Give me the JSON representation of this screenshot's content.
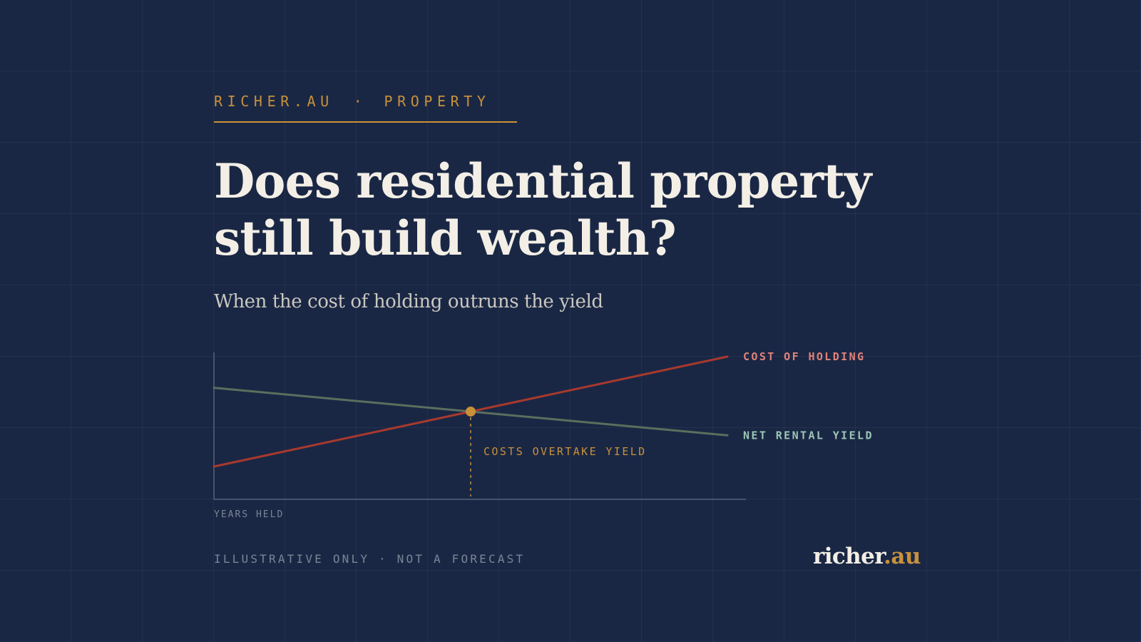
{
  "kicker": {
    "site": "RICHER.AU",
    "separator": "·",
    "section": "PROPERTY"
  },
  "headline": {
    "line1": "Does residential property",
    "line2": "still build wealth?"
  },
  "subtitle": "When the cost of holding outruns the yield",
  "chart_data": {
    "type": "line",
    "title": "",
    "xlabel": "YEARS HELD",
    "ylabel": "",
    "x_range": [
      0,
      1
    ],
    "y_range": [
      0,
      1
    ],
    "grid": false,
    "legend_placement": "right (labels at line ends)",
    "series": [
      {
        "name": "COST OF HOLDING",
        "color": "#a8392e",
        "label_color": "#e0837a",
        "x": [
          0,
          1
        ],
        "y": [
          0.2,
          0.87
        ]
      },
      {
        "name": "NET RENTAL YIELD",
        "color": "#5b6f5e",
        "label_color": "#9cc6b5",
        "x": [
          0,
          1
        ],
        "y": [
          0.68,
          0.39
        ]
      }
    ],
    "annotations": [
      {
        "text": "COSTS OVERTAKE YIELD",
        "x": 0.5,
        "y": 0.535,
        "color": "#c8913a"
      }
    ]
  },
  "footer": {
    "note": "ILLUSTRATIVE ONLY · NOT A FORECAST",
    "brand_name": "richer",
    "brand_tld": ".au"
  },
  "colors": {
    "background": "#1a2744",
    "accent": "#c8913a",
    "headline": "#f3efe6",
    "axis": "#56607a"
  }
}
